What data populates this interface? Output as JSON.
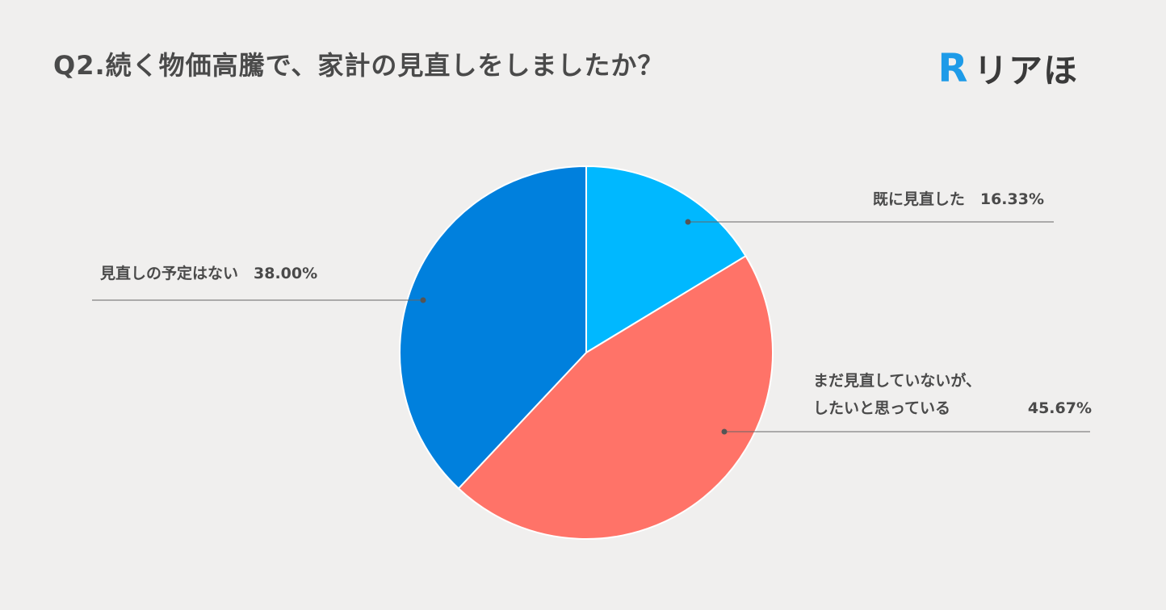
{
  "header": {
    "title": "Q2.続く物価高騰で、家計の見直しをしましたか？"
  },
  "logo": {
    "mark_letter": "R",
    "text": "リアほ",
    "mark_color": "#1e9be8"
  },
  "chart_data": {
    "type": "pie",
    "title": "Q2.続く物価高騰で、家計の見直しをしましたか？",
    "start_angle_deg": 0,
    "direction": "clockwise",
    "slices": [
      {
        "label_lines": [
          "既に見直した"
        ],
        "value": 16.33,
        "value_label": "16.33%",
        "color": "#00b8ff"
      },
      {
        "label_lines": [
          "まだ見直していないが、",
          "したいと思っている"
        ],
        "value": 45.67,
        "value_label": "45.67%",
        "color": "#ff7368"
      },
      {
        "label_lines": [
          "見直しの予定はない"
        ],
        "value": 38.0,
        "value_label": "38.00%",
        "color": "#0080dd"
      }
    ],
    "legend": "none",
    "label_style": "callout-leader-lines"
  }
}
